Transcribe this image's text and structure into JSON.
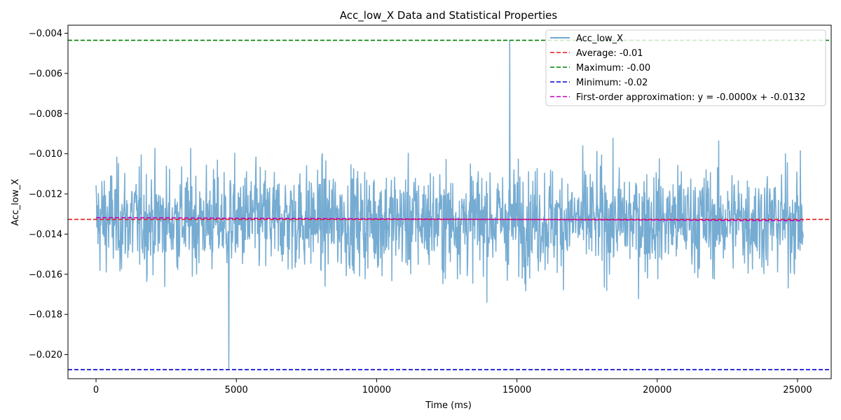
{
  "chart_data": {
    "type": "line",
    "title": "Acc_low_X Data and Statistical Properties",
    "xlabel": "Time (ms)",
    "ylabel": "Acc_low_X",
    "xlim": [
      -1000,
      26200
    ],
    "ylim": [
      -0.0212,
      -0.0036
    ],
    "x_ticks": [
      0,
      5000,
      10000,
      15000,
      20000,
      25000
    ],
    "x_tick_labels": [
      "0",
      "5000",
      "10000",
      "15000",
      "20000",
      "25000"
    ],
    "y_ticks": [
      -0.02,
      -0.018,
      -0.016,
      -0.014,
      -0.012,
      -0.01,
      -0.008,
      -0.006,
      -0.004
    ],
    "y_tick_labels": [
      "−0.020",
      "−0.018",
      "−0.016",
      "−0.014",
      "−0.012",
      "−0.010",
      "−0.008",
      "−0.006",
      "−0.004"
    ],
    "grid": false,
    "legend_position": "top-right",
    "series": [
      {
        "name": "Acc_low_X",
        "color": "#6fa8d0",
        "style": "solid",
        "x_range": [
          0,
          25200
        ],
        "mean": -0.0133,
        "std": 0.0013,
        "max": -0.00435,
        "min": -0.0207
      },
      {
        "name": "Average: -0.01",
        "color": "#e41a1c",
        "style": "dashed",
        "y": -0.01327
      },
      {
        "name": "Maximum: -0.00",
        "color": "#008000",
        "style": "dashed",
        "y": -0.00435
      },
      {
        "name": "Minimum: -0.02",
        "color": "#0000cc",
        "style": "dashed",
        "y": -0.02075
      },
      {
        "name": "First-order approximation: y = -0.0000x + -0.0132",
        "color": "#c000c0",
        "style": "dashed",
        "slope": -6.1e-09,
        "intercept": -0.01318
      }
    ]
  }
}
